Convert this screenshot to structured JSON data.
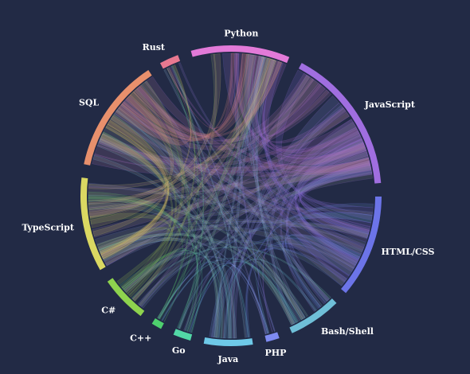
{
  "chart_data": {
    "type": "chord",
    "background": "#222a45",
    "groups": [
      {
        "name": "JavaScript",
        "color": "#a06ee0",
        "weight": 10
      },
      {
        "name": "HTML/CSS",
        "color": "#6c74e8",
        "weight": 7
      },
      {
        "name": "Bash/Shell",
        "color": "#6fbfd8",
        "weight": 3.6
      },
      {
        "name": "PHP",
        "color": "#7e8bf2",
        "weight": 0.9
      },
      {
        "name": "Java",
        "color": "#6ec9e8",
        "weight": 3.3
      },
      {
        "name": "Go",
        "color": "#52d8a6",
        "weight": 1.2
      },
      {
        "name": "C++",
        "color": "#4ed06e",
        "weight": 0.7
      },
      {
        "name": "C#",
        "color": "#8ed34e",
        "weight": 3.2
      },
      {
        "name": "TypeScript",
        "color": "#dad862",
        "weight": 6.4
      },
      {
        "name": "SQL",
        "color": "#e8906c",
        "weight": 7.8
      },
      {
        "name": "Rust",
        "color": "#e87890",
        "weight": 1.3
      },
      {
        "name": "Python",
        "color": "#e27ad8",
        "weight": 6.7
      }
    ]
  }
}
